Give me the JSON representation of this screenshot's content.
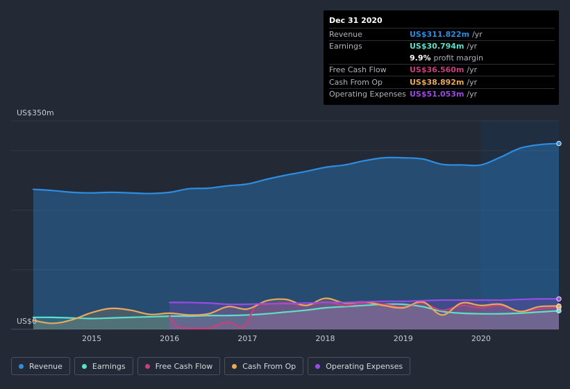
{
  "tooltip": {
    "date": "Dec 31 2020",
    "revenue_label": "Revenue",
    "revenue_value": "US$311.822m",
    "revenue_unit": "/yr",
    "earnings_label": "Earnings",
    "earnings_value": "US$30.794m",
    "earnings_unit": "/yr",
    "margin_value": "9.9%",
    "margin_label": "profit margin",
    "fcf_label": "Free Cash Flow",
    "fcf_value": "US$36.560m",
    "fcf_unit": "/yr",
    "cfo_label": "Cash From Op",
    "cfo_value": "US$38.892m",
    "cfo_unit": "/yr",
    "opex_label": "Operating Expenses",
    "opex_value": "US$51.053m",
    "opex_unit": "/yr"
  },
  "legend": [
    {
      "label": "Revenue",
      "color": "#2d8de0"
    },
    {
      "label": "Earnings",
      "color": "#5ee0c8"
    },
    {
      "label": "Free Cash Flow",
      "color": "#c93f7c"
    },
    {
      "label": "Cash From Op",
      "color": "#e9a95a"
    },
    {
      "label": "Operating Expenses",
      "color": "#9b4ce0"
    }
  ],
  "chart_data": {
    "type": "area",
    "title": "",
    "xlabel": "",
    "ylabel": "",
    "y_top_label": "US$350m",
    "y_bottom_label": "US$0",
    "ylim": [
      0,
      350
    ],
    "xlim": [
      2014.25,
      2021.0
    ],
    "x_ticks": [
      2015,
      2016,
      2017,
      2018,
      2019,
      2020
    ],
    "x_tick_labels": [
      "2015",
      "2016",
      "2017",
      "2018",
      "2019",
      "2020"
    ],
    "highlight_from": 2020.0,
    "series": [
      {
        "name": "Revenue",
        "color": "#2d8de0",
        "x": [
          2014.25,
          2014.5,
          2014.75,
          2015.0,
          2015.25,
          2015.5,
          2015.75,
          2016.0,
          2016.25,
          2016.5,
          2016.75,
          2017.0,
          2017.25,
          2017.5,
          2017.75,
          2018.0,
          2018.25,
          2018.5,
          2018.75,
          2019.0,
          2019.25,
          2019.5,
          2019.75,
          2020.0,
          2020.25,
          2020.5,
          2020.75,
          2021.0
        ],
        "values": [
          235,
          233,
          230,
          229,
          230,
          229,
          228,
          230,
          236,
          237,
          241,
          244,
          252,
          259,
          265,
          272,
          276,
          283,
          288,
          288,
          286,
          277,
          276,
          276,
          289,
          304,
          310,
          312
        ]
      },
      {
        "name": "Earnings",
        "color": "#5ee0c8",
        "x": [
          2014.25,
          2014.5,
          2014.75,
          2015.0,
          2015.25,
          2015.5,
          2015.75,
          2016.0,
          2016.25,
          2016.5,
          2016.75,
          2017.0,
          2017.25,
          2017.5,
          2017.75,
          2018.0,
          2018.25,
          2018.5,
          2018.75,
          2019.0,
          2019.25,
          2019.5,
          2019.75,
          2020.0,
          2020.25,
          2020.5,
          2020.75,
          2021.0
        ],
        "values": [
          20,
          20,
          19,
          18,
          19,
          20,
          21,
          22,
          22,
          23,
          23,
          24,
          26,
          29,
          32,
          36,
          38,
          40,
          42,
          42,
          38,
          30,
          27,
          26,
          26,
          27,
          29,
          31
        ]
      },
      {
        "name": "Free Cash Flow",
        "color": "#c93f7c",
        "x": [
          2016.0,
          2016.1,
          2016.25,
          2016.5,
          2016.75,
          2016.95,
          2017.1,
          2017.25,
          2017.5,
          2017.75,
          2018.0,
          2018.25,
          2018.5,
          2018.75,
          2019.0,
          2019.25,
          2019.5,
          2019.75,
          2020.0,
          2020.25,
          2020.5,
          2020.75,
          2021.0
        ],
        "values": [
          22,
          5,
          2,
          2,
          12,
          4,
          38,
          42,
          44,
          40,
          46,
          40,
          44,
          42,
          38,
          44,
          32,
          40,
          36,
          40,
          30,
          34,
          37
        ]
      },
      {
        "name": "Cash From Op",
        "color": "#e9a95a",
        "x": [
          2014.25,
          2014.5,
          2014.75,
          2015.0,
          2015.25,
          2015.5,
          2015.75,
          2016.0,
          2016.25,
          2016.5,
          2016.75,
          2017.0,
          2017.25,
          2017.5,
          2017.75,
          2018.0,
          2018.25,
          2018.5,
          2018.75,
          2019.0,
          2019.25,
          2019.5,
          2019.75,
          2020.0,
          2020.25,
          2020.5,
          2020.75,
          2021.0
        ],
        "values": [
          15,
          10,
          16,
          28,
          35,
          32,
          25,
          27,
          24,
          26,
          38,
          34,
          48,
          50,
          40,
          52,
          44,
          46,
          40,
          36,
          46,
          24,
          44,
          40,
          42,
          30,
          38,
          39
        ]
      },
      {
        "name": "Operating Expenses",
        "color": "#9b4ce0",
        "x": [
          2016.0,
          2016.25,
          2016.5,
          2016.75,
          2017.0,
          2017.25,
          2017.5,
          2017.75,
          2018.0,
          2018.25,
          2018.5,
          2018.75,
          2019.0,
          2019.25,
          2019.5,
          2019.75,
          2020.0,
          2020.25,
          2020.5,
          2020.75,
          2021.0
        ],
        "values": [
          45,
          45,
          44,
          42,
          42,
          43,
          43,
          44,
          45,
          45,
          46,
          47,
          47,
          48,
          49,
          49,
          49,
          49,
          50,
          51,
          51
        ]
      }
    ]
  }
}
